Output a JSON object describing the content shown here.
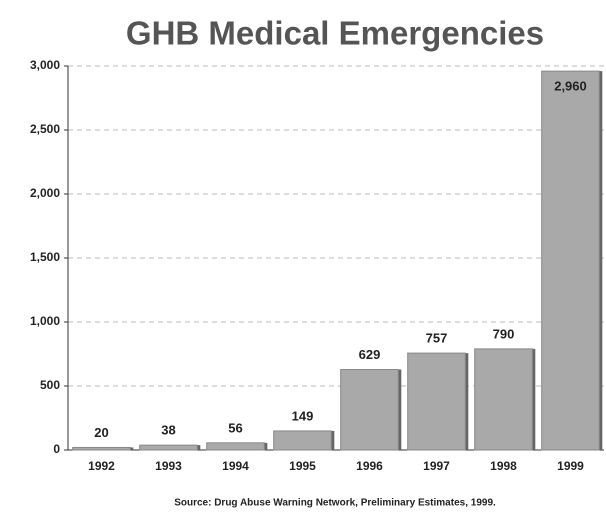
{
  "chart_data": {
    "type": "bar",
    "title": "GHB Medical Emergencies",
    "categories": [
      "1992",
      "1993",
      "1994",
      "1995",
      "1996",
      "1997",
      "1998",
      "1999"
    ],
    "values": [
      20,
      38,
      56,
      149,
      629,
      757,
      790,
      2960
    ],
    "value_labels": [
      "20",
      "38",
      "56",
      "149",
      "629",
      "757",
      "790",
      "2,960"
    ],
    "color": "#a9a9a9",
    "ylim": [
      0,
      3000
    ],
    "yticks": [
      0,
      500,
      {
        "value": 1000,
        "label": "1,000"
      },
      {
        "value": 1500,
        "label": "1,500"
      },
      {
        "value": 2000,
        "label": "2,000"
      },
      {
        "value": 2500,
        "label": "2,500"
      },
      {
        "value": 3000,
        "label": "3,000"
      }
    ],
    "grid": true,
    "source": "Source: Drug Abuse Warning Network, Preliminary Estimates, 1999."
  }
}
